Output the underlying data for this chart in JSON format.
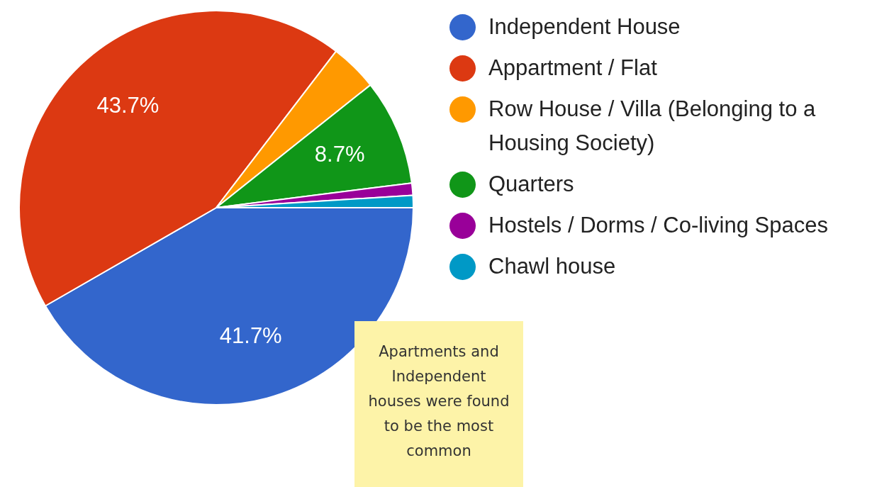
{
  "chart_data": {
    "type": "pie",
    "categories": [
      "Independent House",
      "Appartment / Flat",
      "Row House / Villa (Belonging to a Housing Society)",
      "Quarters",
      "Hostels / Dorms / Co-living Spaces",
      "Chawl house"
    ],
    "values": [
      41.7,
      43.7,
      3.9,
      8.7,
      1,
      1
    ],
    "colors": [
      "#3366cc",
      "#dc3912",
      "#ff9900",
      "#109618",
      "#990099",
      "#0099c6"
    ],
    "value_labels": [
      "41.7%",
      "43.7%",
      null,
      "8.7%",
      null,
      null
    ],
    "legend": "right",
    "annotations": [
      "Apartments and Independent houses were found to be the most common"
    ]
  }
}
